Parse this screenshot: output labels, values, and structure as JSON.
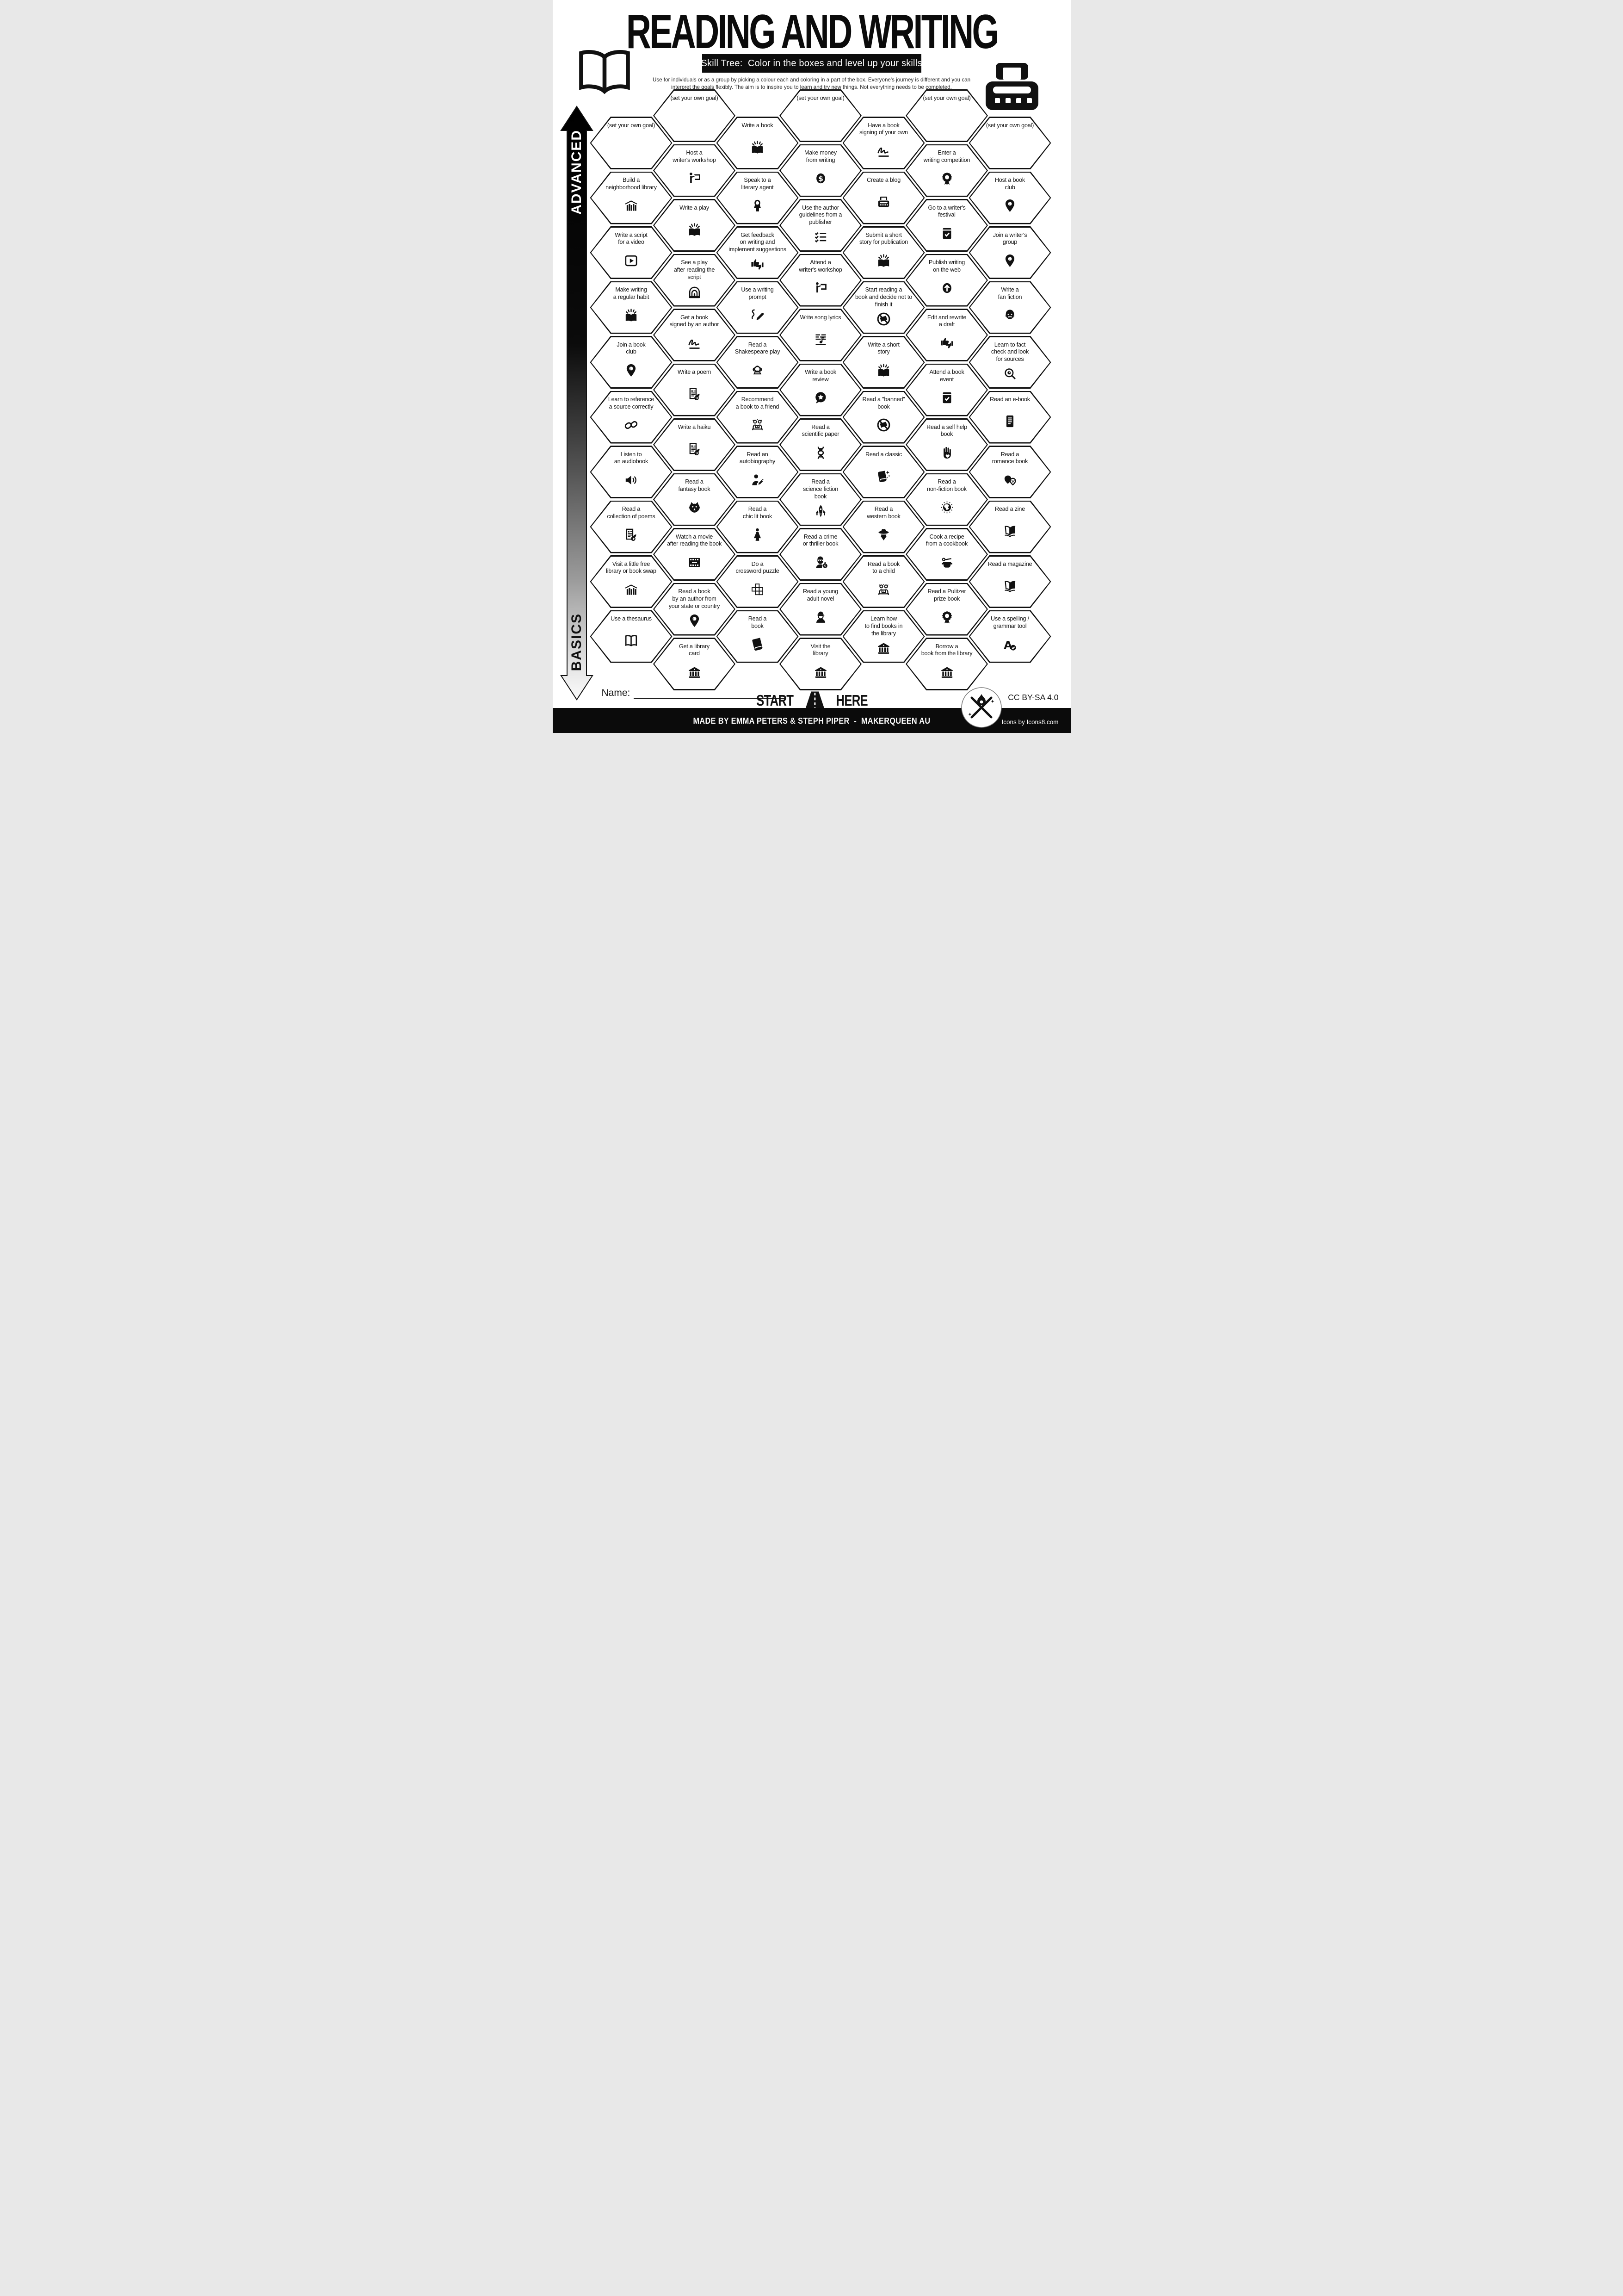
{
  "title": "READING AND WRITING",
  "subtitle": "Skill Tree:  Color in the boxes and level up your skills",
  "description": "Use for individuals or as a group by picking a colour each and coloring in a part of the box.  Everyone's journey is different and you can\ninterpret the goals flexibly.  The aim is to inspire you to learn and try new things. Not everything needs to be completed.",
  "axis": {
    "top": "ADVANCED",
    "bottom": "BASICS"
  },
  "start": {
    "left": "START",
    "right": "HERE",
    "icon": "road-icon"
  },
  "name_label": "Name:",
  "footer": {
    "credit": "MADE BY EMMA PETERS & STEPH PIPER  -  MAKERQUEEN AU",
    "license": "CC BY-SA 4.0",
    "icons_credit": "Icons by Icons8.com"
  },
  "corner_icons": {
    "top_left": "open-book-icon",
    "top_right": "typewriter-icon"
  },
  "colors": {
    "ink": "#111111",
    "paper": "#ffffff",
    "bar": "#0c0c0c"
  },
  "hexes": [
    {
      "c": 0,
      "r": 0,
      "label": "(set your own goal)",
      "icon": null
    },
    {
      "c": 0,
      "r": 1,
      "label": "Build a\nneighborhood library",
      "icon": "library-house-icon"
    },
    {
      "c": 0,
      "r": 2,
      "label": "Write a script\nfor a video",
      "icon": "play-video-icon"
    },
    {
      "c": 0,
      "r": 3,
      "label": "Make writing\na regular habit",
      "icon": "book-sparkles-icon"
    },
    {
      "c": 0,
      "r": 4,
      "label": "Join a book\nclub",
      "icon": "location-pin-icon"
    },
    {
      "c": 0,
      "r": 5,
      "label": "Learn to reference\na source correctly",
      "icon": "chain-icon"
    },
    {
      "c": 0,
      "r": 6,
      "label": "Listen to\nan audiobook",
      "icon": "speaker-icon"
    },
    {
      "c": 0,
      "r": 7,
      "label": "Read a\ncollection of poems",
      "icon": "poem-icon"
    },
    {
      "c": 0,
      "r": 8,
      "label": "Visit a little free\nlibrary or book swap",
      "icon": "library-house-icon"
    },
    {
      "c": 0,
      "r": 9,
      "label": "Use a thesaurus",
      "icon": "open-book-icon"
    },
    {
      "c": 1,
      "r": 0,
      "label": "(set your own goal)",
      "icon": null
    },
    {
      "c": 1,
      "r": 1,
      "label": "Host a\nwriter's workshop",
      "icon": "presenter-icon"
    },
    {
      "c": 1,
      "r": 2,
      "label": "Write a play",
      "icon": "book-sparkles-icon"
    },
    {
      "c": 1,
      "r": 3,
      "label": "See a play\nafter reading the\nscript",
      "icon": "theater-icon"
    },
    {
      "c": 1,
      "r": 4,
      "label": "Get a book\nsigned by an author",
      "icon": "signature-icon"
    },
    {
      "c": 1,
      "r": 5,
      "label": "Write a poem",
      "icon": "poem-icon"
    },
    {
      "c": 1,
      "r": 6,
      "label": "Write a haiku",
      "icon": "poem-icon"
    },
    {
      "c": 1,
      "r": 7,
      "label": "Read a\nfantasy book",
      "icon": "dragon-icon"
    },
    {
      "c": 1,
      "r": 8,
      "label": "Watch a movie\nafter reading the book",
      "icon": "film-icon"
    },
    {
      "c": 1,
      "r": 9,
      "label": "Read a book\nby an author from\nyour state or country",
      "icon": "location-pin-icon"
    },
    {
      "c": 1,
      "r": 10,
      "label": "Get a library\ncard",
      "icon": "library-building-icon"
    },
    {
      "c": 2,
      "r": 0,
      "label": "Write a book",
      "icon": "book-sparkles-icon"
    },
    {
      "c": 2,
      "r": 1,
      "label": "Speak to a\nliterary agent",
      "icon": "woman-icon"
    },
    {
      "c": 2,
      "r": 2,
      "label": "Get feedback\non writing and\nimplement suggestions",
      "icon": "thumbs-icon"
    },
    {
      "c": 2,
      "r": 3,
      "label": "Use a writing\nprompt",
      "icon": "prompt-icon"
    },
    {
      "c": 2,
      "r": 4,
      "label": "Read a\nShakespeare play",
      "icon": "shakespeare-icon"
    },
    {
      "c": 2,
      "r": 5,
      "label": "Recommend\na book to a friend",
      "icon": "friends-icon"
    },
    {
      "c": 2,
      "r": 6,
      "label": "Read an\nautobiography",
      "icon": "autobiography-icon"
    },
    {
      "c": 2,
      "r": 7,
      "label": "Read a\nchic lit book",
      "icon": "dress-icon"
    },
    {
      "c": 2,
      "r": 8,
      "label": "Do a\ncrossword puzzle",
      "icon": "crossword-icon"
    },
    {
      "c": 2,
      "r": 9,
      "label": "Read a\nbook",
      "icon": "book-icon"
    },
    {
      "c": 3,
      "r": 0,
      "label": "(set your own goal)",
      "icon": null
    },
    {
      "c": 3,
      "r": 1,
      "label": "Make money\nfrom writing",
      "icon": "dollar-icon"
    },
    {
      "c": 3,
      "r": 2,
      "label": "Use the author\nguidelines from a\npublisher",
      "icon": "checklist-icon"
    },
    {
      "c": 3,
      "r": 3,
      "label": "Attend a\nwriter's workshop",
      "icon": "presenter-icon"
    },
    {
      "c": 3,
      "r": 4,
      "label": "Write song lyrics",
      "icon": "music-icon"
    },
    {
      "c": 3,
      "r": 5,
      "label": "Write a book\nreview",
      "icon": "review-icon"
    },
    {
      "c": 3,
      "r": 6,
      "label": "Read a\nscientific paper",
      "icon": "dna-icon"
    },
    {
      "c": 3,
      "r": 7,
      "label": "Read a\nscience fiction\nbook",
      "icon": "spaceship-icon"
    },
    {
      "c": 3,
      "r": 8,
      "label": "Read a crime\nor thriller book",
      "icon": "robber-icon"
    },
    {
      "c": 3,
      "r": 9,
      "label": "Read a young\nadult novel",
      "icon": "cap-person-icon"
    },
    {
      "c": 3,
      "r": 10,
      "label": "Visit the\nlibrary",
      "icon": "library-building-icon"
    },
    {
      "c": 4,
      "r": 0,
      "label": "Have a book\nsigning of your own",
      "icon": "signature-icon"
    },
    {
      "c": 4,
      "r": 1,
      "label": "Create a blog",
      "icon": "typewriter-small-icon"
    },
    {
      "c": 4,
      "r": 2,
      "label": "Submit a short\nstory for publication",
      "icon": "book-sparkles-icon"
    },
    {
      "c": 4,
      "r": 3,
      "label": "Start reading a\nbook and decide not to\nfinish it",
      "icon": "banned-book-icon"
    },
    {
      "c": 4,
      "r": 4,
      "label": "Write a short\nstory",
      "icon": "book-sparkles-icon"
    },
    {
      "c": 4,
      "r": 5,
      "label": "Read a \"banned\"\nbook",
      "icon": "banned-book-icon"
    },
    {
      "c": 4,
      "r": 6,
      "label": "Read a classic",
      "icon": "classic-book-icon"
    },
    {
      "c": 4,
      "r": 7,
      "label": "Read a\nwestern book",
      "icon": "cowboy-icon"
    },
    {
      "c": 4,
      "r": 8,
      "label": "Read a book\nto a child",
      "icon": "friends-icon"
    },
    {
      "c": 4,
      "r": 9,
      "label": "Learn how\nto find books in\nthe library",
      "icon": "library-building-icon"
    },
    {
      "c": 5,
      "r": 0,
      "label": "(set your own goal)",
      "icon": null
    },
    {
      "c": 5,
      "r": 1,
      "label": "Enter a\nwriting competition",
      "icon": "award-icon"
    },
    {
      "c": 5,
      "r": 2,
      "label": "Go to a writer's\nfestival",
      "icon": "book-check-icon"
    },
    {
      "c": 5,
      "r": 3,
      "label": "Publish writing\non the web",
      "icon": "upload-icon"
    },
    {
      "c": 5,
      "r": 4,
      "label": "Edit and rewrite\na draft",
      "icon": "thumbs-icon"
    },
    {
      "c": 5,
      "r": 5,
      "label": "Attend a book\nevent",
      "icon": "book-check-icon"
    },
    {
      "c": 5,
      "r": 6,
      "label": "Read a self help\nbook",
      "icon": "hand-heart-icon"
    },
    {
      "c": 5,
      "r": 7,
      "label": "Read a\nnon-fiction book",
      "icon": "globe-icon"
    },
    {
      "c": 5,
      "r": 8,
      "label": "Cook a recipe\nfrom a cookbook",
      "icon": "pot-icon"
    },
    {
      "c": 5,
      "r": 9,
      "label": "Read a Pulitzer\nprize book",
      "icon": "award-icon"
    },
    {
      "c": 5,
      "r": 10,
      "label": "Borrow a\nbook from the library",
      "icon": "library-building-icon"
    },
    {
      "c": 6,
      "r": 0,
      "label": "(set your own goal)",
      "icon": null
    },
    {
      "c": 6,
      "r": 1,
      "label": "Host a book\nclub",
      "icon": "location-pin-icon"
    },
    {
      "c": 6,
      "r": 2,
      "label": "Join a writer's\ngroup",
      "icon": "location-pin-icon"
    },
    {
      "c": 6,
      "r": 3,
      "label": "Write a\nfan fiction",
      "icon": "vampire-icon"
    },
    {
      "c": 6,
      "r": 4,
      "label": "Learn to fact\ncheck and look\nfor sources",
      "icon": "search-eye-icon"
    },
    {
      "c": 6,
      "r": 5,
      "label": "Read an e-book",
      "icon": "ereader-icon"
    },
    {
      "c": 6,
      "r": 6,
      "label": "Read a\nromance book",
      "icon": "hearts-icon"
    },
    {
      "c": 6,
      "r": 7,
      "label": "Read a zine",
      "icon": "magazine-icon"
    },
    {
      "c": 6,
      "r": 8,
      "label": "Read a magazine",
      "icon": "magazine-icon"
    },
    {
      "c": 6,
      "r": 9,
      "label": "Use a spelling /\ngrammar tool",
      "icon": "spellcheck-icon"
    }
  ]
}
